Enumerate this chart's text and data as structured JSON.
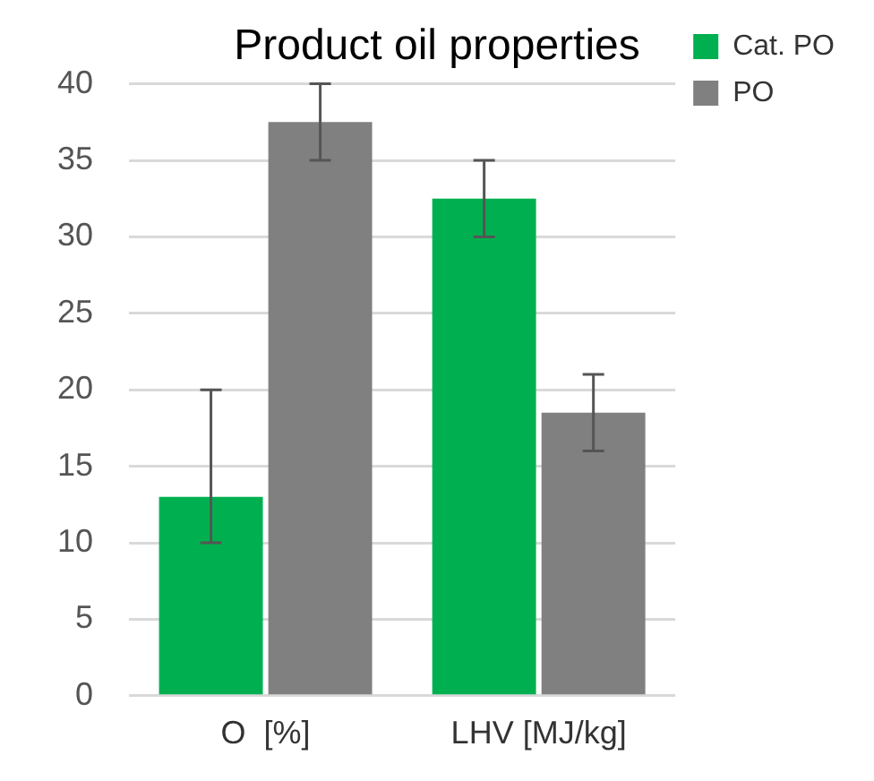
{
  "chart_data": {
    "type": "bar",
    "title": "Product oil properties",
    "categories": [
      "O  [%]",
      "LHV [MJ/kg]"
    ],
    "series": [
      {
        "name": "Cat. PO",
        "color": "#00b050",
        "values": [
          13,
          32.5
        ],
        "errors": [
          [
            10,
            20
          ],
          [
            30,
            35
          ]
        ]
      },
      {
        "name": "PO",
        "color": "#808080",
        "values": [
          37.5,
          18.5
        ],
        "errors": [
          [
            35,
            40
          ],
          [
            16,
            21
          ]
        ]
      }
    ],
    "ylim": [
      0,
      40
    ],
    "yticks": [
      0,
      5,
      10,
      15,
      20,
      25,
      30,
      35,
      40
    ],
    "grid": "y",
    "legend": "top right"
  }
}
